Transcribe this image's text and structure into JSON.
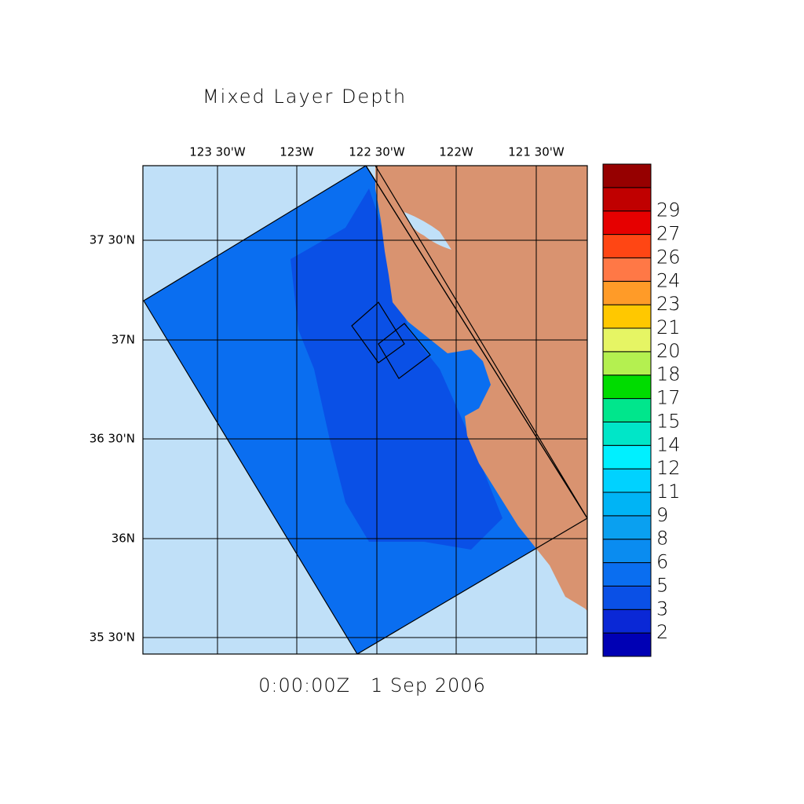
{
  "title": "Mixed Layer Depth",
  "time_label": "0:00:00Z   1 Sep 2006",
  "lon_labels": [
    "123 30'W",
    "123W",
    "122 30'W",
    "122W",
    "121 30'W"
  ],
  "lat_labels": [
    "37 30'N",
    "37N",
    "36 30'N",
    "36N",
    "35 30'N"
  ],
  "colorbar": {
    "labels": [
      "2",
      "3",
      "5",
      "6",
      "8",
      "9",
      "11",
      "12",
      "14",
      "15",
      "17",
      "18",
      "20",
      "21",
      "23",
      "24",
      "26",
      "27",
      "29"
    ],
    "colors": [
      "#0000b4",
      "#0a28d6",
      "#0a50e6",
      "#0a6ef0",
      "#0a8cf0",
      "#0aa0f0",
      "#00b4f5",
      "#00d2ff",
      "#00f0ff",
      "#00e6c8",
      "#00e68c",
      "#00dc00",
      "#b4f050",
      "#e6f564",
      "#ffc800",
      "#ff9b28",
      "#ff7846",
      "#ff4614",
      "#e60000",
      "#c00000",
      "#960000"
    ]
  }
}
